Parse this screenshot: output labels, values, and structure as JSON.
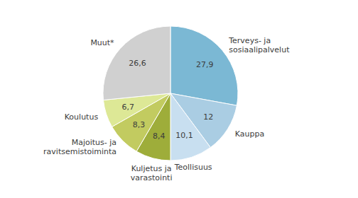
{
  "chart_data": {
    "type": "pie",
    "categories": [
      "Terveys- ja\nsosiaalipalvelut",
      "Kauppa",
      "Teollisuus",
      "Kuljetus ja\nvarastointi",
      "Majoitus- ja\nravitsemistoiminta",
      "Koulutus",
      "Muut*"
    ],
    "values": [
      27.9,
      12.0,
      10.1,
      8.4,
      8.3,
      6.7,
      26.6
    ],
    "value_labels": [
      "27,9",
      "12",
      "10,1",
      "8,4",
      "8,3",
      "6,7",
      "26,6"
    ],
    "colors": [
      "#7BB8D4",
      "#AACDE3",
      "#C8DFF0",
      "#9EAD3A",
      "#C2CB60",
      "#DDE896",
      "#D0D0D0"
    ],
    "data_labels": true
  }
}
